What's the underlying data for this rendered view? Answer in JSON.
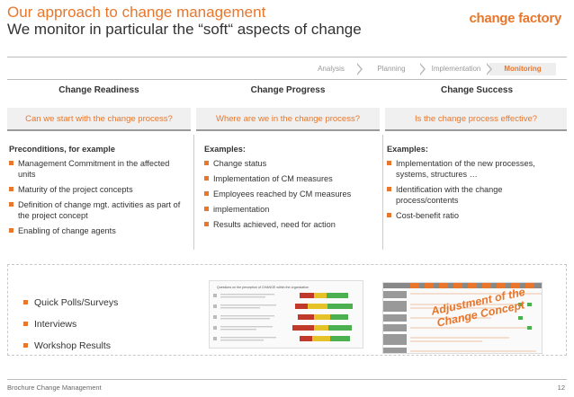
{
  "header": {
    "title": "Our approach to change management",
    "subtitle": "We monitor in particular the “soft“ aspects of change",
    "logo_text": "change factory"
  },
  "phases": [
    {
      "label": "Analysis",
      "active": false
    },
    {
      "label": "Planning",
      "active": false
    },
    {
      "label": "Implementation",
      "active": false
    },
    {
      "label": "Monitoring",
      "active": true
    }
  ],
  "columns": [
    {
      "heading": "Change Readiness",
      "question": "Can we start with the change process?",
      "lead": "Preconditions, for example",
      "items": [
        "Management Commitment in the affected units",
        "Maturity of the project concepts",
        "Definition of change mgt. activities as part of the project concept",
        "Enabling of change agents"
      ]
    },
    {
      "heading": "Change Progress",
      "question": "Where are we in the change process?",
      "lead": "Examples:",
      "items": [
        "Change status",
        "Implementation of CM measures",
        "Employees reached by CM measures",
        "implementation",
        "Results achieved, need for action"
      ]
    },
    {
      "heading": "Change Success",
      "question": "Is the change process effective?",
      "lead": "Examples:",
      "items": [
        "Implementation of the new processes, systems, structures …",
        "Identification with the change process/contents",
        "Cost-benefit ratio"
      ]
    }
  ],
  "methods": [
    "Quick Polls/Surveys",
    "Interviews",
    "Workshop Results"
  ],
  "thumbnail_survey": {
    "title": "Questions on the perception of CHANGE within the organization"
  },
  "stamp": {
    "line1": "Adjustment of the",
    "line2": "Change Concept"
  },
  "footer": {
    "left": "Brochure Change Management",
    "page": "12"
  },
  "colors": {
    "accent": "#e8762b",
    "text": "#333333",
    "muted": "#999999",
    "survey_red": "#c0392b",
    "survey_yellow": "#e6c229",
    "survey_green": "#4caf50"
  }
}
